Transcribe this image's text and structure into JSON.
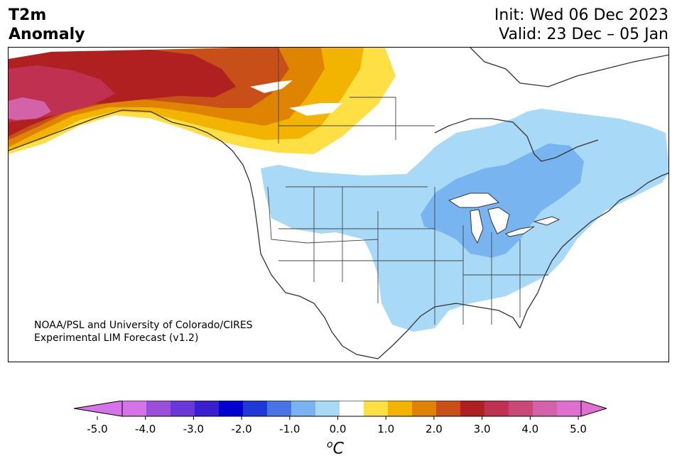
{
  "header": {
    "title_line1": "T2m",
    "title_line2": "Anomaly",
    "init": "Init: Wed 06 Dec 2023",
    "valid": "Valid: 23 Dec – 05 Jan"
  },
  "credit": {
    "line1": "NOAA/PSL and University of Colorado/CIRES",
    "line2": "Experimental LIM Forecast (v1.2)"
  },
  "colorbar": {
    "unit_symbol": "o",
    "unit_letter": "C",
    "ticks": [
      "-5.0",
      "-4.0",
      "-3.0",
      "-2.0",
      "-1.0",
      "0.0",
      "1.0",
      "2.0",
      "3.0",
      "4.0",
      "5.0"
    ],
    "colors": [
      "#d474e8",
      "#9a4fd8",
      "#6a38d8",
      "#3a1fd0",
      "#0000d0",
      "#2038d8",
      "#4a74e4",
      "#78b4f0",
      "#a8daf8",
      "#ffffff",
      "#ffe044",
      "#f2b400",
      "#de8400",
      "#c85018",
      "#b02020",
      "#c03050",
      "#c84878",
      "#d462a8",
      "#e070d0"
    ],
    "under_color": "#d474e8",
    "over_color": "#e070d0"
  },
  "map_colors": {
    "cold1": "#a8daf8",
    "cold2": "#78b4f0",
    "warm1": "#ffe044",
    "warm2": "#f2b400",
    "warm3": "#de8400",
    "warm4": "#c85018",
    "warm5": "#b02020",
    "warm6": "#c03050",
    "warm7": "#d462a8",
    "line": "#333333"
  }
}
